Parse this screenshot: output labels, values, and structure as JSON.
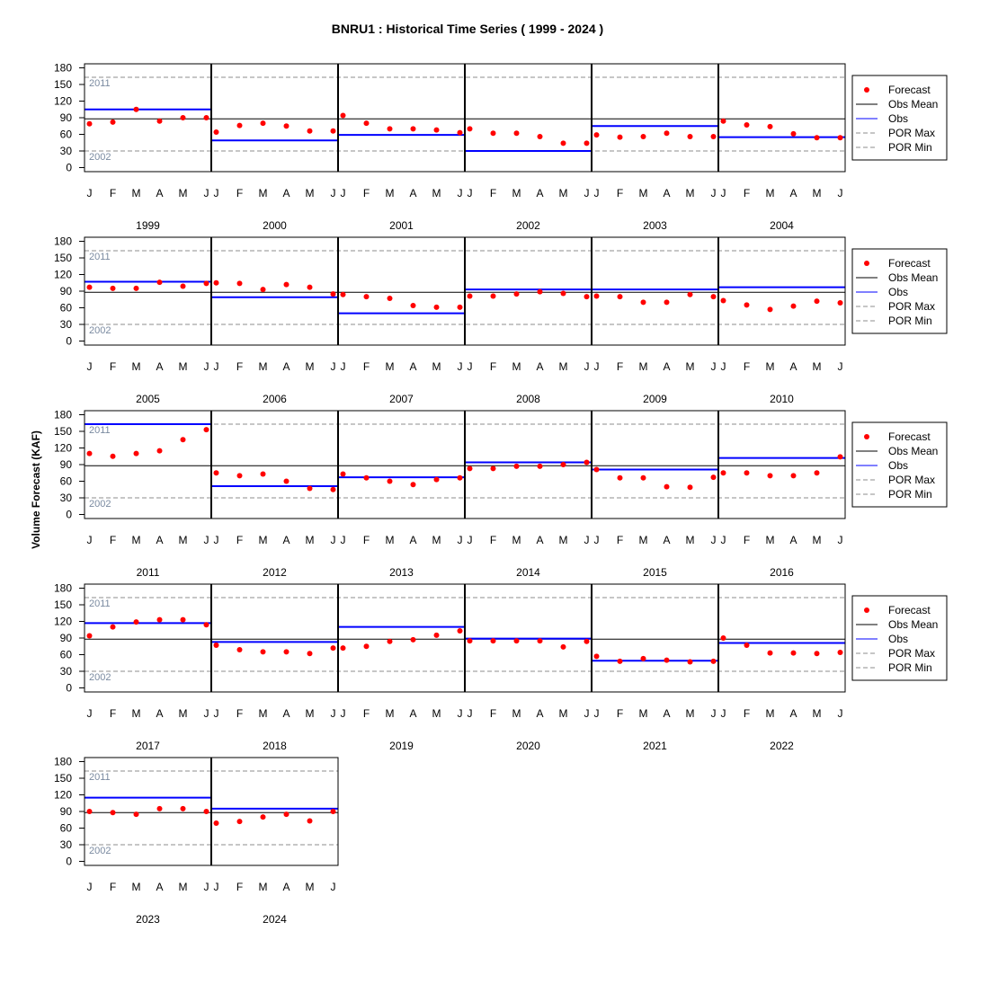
{
  "title": "BNRU1 : Historical Time Series ( 1999 - 2024 )",
  "ylabel": "Volume Forecast (KAF)",
  "colors": {
    "forecast": "#ff0000",
    "obs": "#0000ff",
    "obs_mean": "#000000",
    "por": "#8c8c8c",
    "por_label": "#7a8aa0"
  },
  "chart_data": {
    "type": "scatter",
    "title": "BNRU1 : Historical Time Series ( 1999 - 2024 )",
    "ylabel": "Volume Forecast (KAF)",
    "ylim": [
      0,
      180
    ],
    "yticks": [
      0,
      30,
      60,
      90,
      120,
      150,
      180
    ],
    "months": [
      "J",
      "F",
      "M",
      "A",
      "M",
      "J"
    ],
    "obs_mean": 88,
    "por_max": {
      "value": 163,
      "label": "2011"
    },
    "por_min": {
      "value": 30,
      "label": "2002"
    },
    "legend": [
      "Forecast",
      "Obs Mean",
      "Obs",
      "POR Max",
      "POR Min"
    ],
    "years": [
      {
        "year": "1999",
        "obs": 105,
        "forecast": [
          79,
          82,
          105,
          84,
          90,
          90
        ]
      },
      {
        "year": "2000",
        "obs": 49,
        "forecast": [
          64,
          76,
          80,
          75,
          66,
          66
        ]
      },
      {
        "year": "2001",
        "obs": 59,
        "forecast": [
          94,
          80,
          70,
          70,
          68,
          63
        ]
      },
      {
        "year": "2002",
        "obs": 30,
        "forecast": [
          70,
          62,
          62,
          56,
          44,
          44
        ]
      },
      {
        "year": "2003",
        "obs": 75,
        "forecast": [
          59,
          55,
          56,
          62,
          56,
          56
        ]
      },
      {
        "year": "2004",
        "obs": 55,
        "forecast": [
          84,
          77,
          74,
          61,
          54,
          54
        ]
      },
      {
        "year": "2005",
        "obs": 107,
        "forecast": [
          97,
          95,
          95,
          106,
          99,
          104
        ]
      },
      {
        "year": "2006",
        "obs": 79,
        "forecast": [
          105,
          104,
          93,
          102,
          97,
          85
        ]
      },
      {
        "year": "2007",
        "obs": 50,
        "forecast": [
          84,
          80,
          77,
          64,
          61,
          61
        ]
      },
      {
        "year": "2008",
        "obs": 93,
        "forecast": [
          81,
          81,
          85,
          89,
          86,
          80
        ]
      },
      {
        "year": "2009",
        "obs": 93,
        "forecast": [
          81,
          80,
          70,
          70,
          84,
          80
        ]
      },
      {
        "year": "2010",
        "obs": 97,
        "forecast": [
          73,
          65,
          57,
          63,
          72,
          69
        ]
      },
      {
        "year": "2011",
        "obs": 163,
        "forecast": [
          110,
          105,
          110,
          115,
          135,
          153
        ]
      },
      {
        "year": "2012",
        "obs": 51,
        "forecast": [
          75,
          70,
          73,
          60,
          47,
          45
        ]
      },
      {
        "year": "2013",
        "obs": 67,
        "forecast": [
          73,
          66,
          60,
          54,
          63,
          66
        ]
      },
      {
        "year": "2014",
        "obs": 94,
        "forecast": [
          83,
          83,
          87,
          87,
          90,
          94
        ]
      },
      {
        "year": "2015",
        "obs": 81,
        "forecast": [
          81,
          66,
          66,
          50,
          49,
          67
        ]
      },
      {
        "year": "2016",
        "obs": 102,
        "forecast": [
          75,
          75,
          70,
          70,
          75,
          104
        ]
      },
      {
        "year": "2017",
        "obs": 117,
        "forecast": [
          94,
          110,
          119,
          123,
          123,
          114
        ]
      },
      {
        "year": "2018",
        "obs": 83,
        "forecast": [
          77,
          69,
          65,
          65,
          62,
          72
        ]
      },
      {
        "year": "2019",
        "obs": 110,
        "forecast": [
          72,
          75,
          84,
          87,
          95,
          103
        ]
      },
      {
        "year": "2020",
        "obs": 89,
        "forecast": [
          85,
          85,
          85,
          85,
          74,
          84
        ]
      },
      {
        "year": "2021",
        "obs": 49,
        "forecast": [
          57,
          48,
          53,
          50,
          47,
          48
        ]
      },
      {
        "year": "2022",
        "obs": 81,
        "forecast": [
          90,
          77,
          63,
          63,
          62,
          64
        ]
      },
      {
        "year": "2023",
        "obs": 115,
        "forecast": [
          90,
          88,
          85,
          95,
          95,
          90
        ]
      },
      {
        "year": "2024",
        "obs": 95,
        "forecast": [
          69,
          72,
          80,
          85,
          73,
          90
        ]
      }
    ]
  }
}
